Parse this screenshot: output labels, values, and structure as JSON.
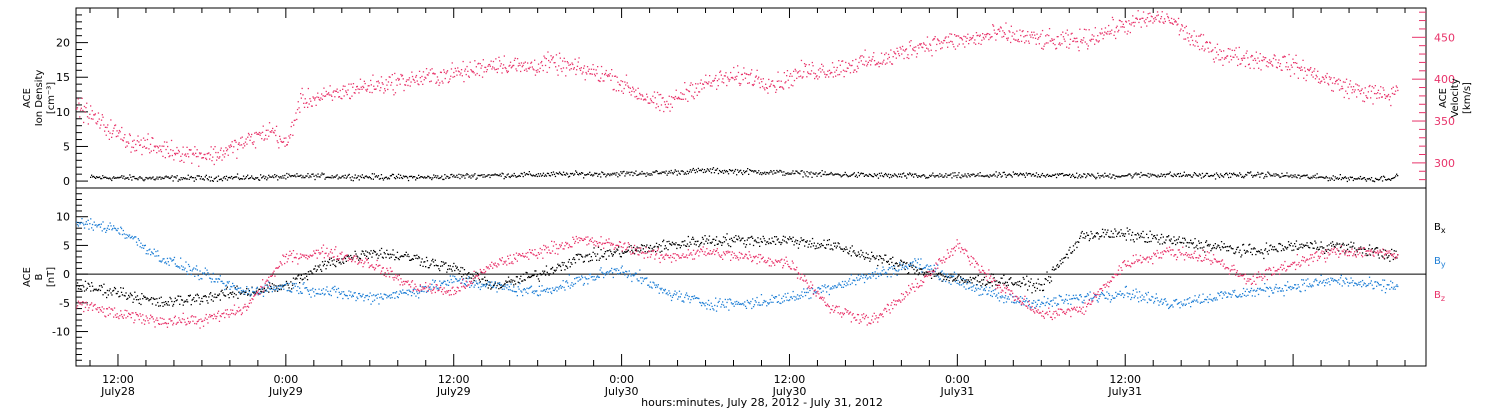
{
  "chart_data": [
    {
      "type": "scatter",
      "panel": "top",
      "y_left_label_lines": [
        "ACE",
        "Ion Density",
        "[cm⁻³]"
      ],
      "y_right_label_lines": [
        "ACE",
        "Velocity",
        "[km/s]"
      ],
      "y_left_ticks": [
        0,
        5,
        10,
        15,
        20
      ],
      "y_left_range": [
        -1,
        25
      ],
      "y_right_ticks": [
        300,
        350,
        400,
        450
      ],
      "y_right_range": [
        270,
        485
      ],
      "x_range_hours": [
        -15,
        81.5
      ],
      "series": [
        {
          "axis": "left",
          "color": "#000000",
          "noise": 0.35,
          "x": [
            -14,
            -10,
            -6,
            -2,
            2,
            6,
            10,
            14,
            18,
            22,
            26,
            30,
            34,
            38,
            42,
            46,
            50,
            54,
            58,
            62,
            66,
            70,
            74,
            78,
            79.5
          ],
          "y": [
            0.6,
            0.5,
            0.5,
            0.6,
            0.8,
            0.7,
            0.6,
            0.9,
            1.0,
            1.1,
            1.2,
            1.6,
            1.4,
            1.1,
            0.9,
            0.8,
            0.9,
            1.0,
            0.8,
            1.0,
            0.9,
            1.0,
            0.6,
            0.4,
            0.7
          ]
        },
        {
          "axis": "right",
          "color": "#e8336a",
          "noise": 10,
          "x": [
            -15,
            -13,
            -11,
            -9,
            -7,
            -5,
            -3,
            -1,
            0,
            1,
            3,
            5,
            7,
            9,
            11,
            13,
            15,
            17,
            19,
            21,
            23,
            25,
            27,
            29,
            31,
            33,
            35,
            37,
            39,
            41,
            43,
            45,
            47,
            49,
            51,
            53,
            55,
            57,
            59,
            61,
            63,
            65,
            67,
            69,
            71,
            73,
            75,
            77,
            79,
            79.5
          ],
          "y": [
            370,
            345,
            325,
            318,
            312,
            310,
            325,
            340,
            320,
            375,
            380,
            390,
            395,
            400,
            405,
            410,
            420,
            415,
            420,
            412,
            405,
            385,
            368,
            390,
            400,
            405,
            395,
            410,
            412,
            420,
            425,
            440,
            445,
            448,
            455,
            450,
            445,
            448,
            460,
            470,
            475,
            445,
            430,
            425,
            422,
            410,
            395,
            385,
            380,
            395
          ]
        }
      ]
    },
    {
      "type": "scatter",
      "panel": "bottom",
      "y_label_lines": [
        "ACE",
        "B",
        "[nT]"
      ],
      "y_ticks": [
        -10,
        -5,
        0,
        5,
        10
      ],
      "y_range": [
        -16,
        15
      ],
      "x_range_hours": [
        -15,
        81.5
      ],
      "zero_line": true,
      "series": [
        {
          "name": "Bx",
          "color": "#000000",
          "noise": 0.9,
          "x": [
            -15,
            -12,
            -9,
            -6,
            -3,
            0,
            3,
            6,
            9,
            12,
            15,
            18,
            21,
            24,
            27,
            30,
            33,
            36,
            39,
            42,
            45,
            48,
            51,
            54,
            57,
            60,
            63,
            66,
            69,
            72,
            75,
            78,
            79.5
          ],
          "y": [
            -2,
            -3,
            -5,
            -4,
            -3,
            -2,
            2,
            4,
            3,
            1,
            -2,
            0,
            3,
            4,
            5,
            6,
            6,
            6,
            5,
            3,
            1,
            -1,
            -1,
            -2,
            7,
            7,
            6,
            5,
            4,
            5,
            5,
            4,
            3
          ]
        },
        {
          "name": "By",
          "color": "#1f7fd6",
          "noise": 0.9,
          "x": [
            -15,
            -12,
            -9,
            -6,
            -3,
            0,
            3,
            6,
            9,
            12,
            15,
            18,
            21,
            24,
            27,
            30,
            33,
            36,
            39,
            42,
            45,
            48,
            51,
            54,
            57,
            60,
            63,
            66,
            69,
            72,
            75,
            78,
            79.5
          ],
          "y": [
            9,
            8,
            3,
            0,
            -3,
            -2,
            -3,
            -4,
            -3,
            -1,
            -2,
            -3,
            -1,
            1,
            -3,
            -5,
            -5,
            -4,
            -2,
            0,
            2,
            -1,
            -4,
            -5,
            -4,
            -3,
            -5,
            -4,
            -3,
            -2,
            -1,
            -2,
            -2
          ]
        },
        {
          "name": "Bz",
          "color": "#e8336a",
          "noise": 0.9,
          "x": [
            -15,
            -12,
            -9,
            -6,
            -3,
            0,
            3,
            6,
            9,
            12,
            15,
            18,
            21,
            24,
            27,
            30,
            33,
            36,
            39,
            42,
            45,
            48,
            51,
            54,
            57,
            60,
            63,
            66,
            69,
            72,
            75,
            78,
            79.5
          ],
          "y": [
            -5,
            -7,
            -8,
            -8,
            -6,
            3,
            4,
            2,
            -2,
            -3,
            2,
            4,
            6,
            5,
            3,
            4,
            3,
            2,
            -6,
            -8,
            -2,
            5,
            -2,
            -7,
            -6,
            2,
            4,
            3,
            -1,
            2,
            4,
            4,
            3
          ]
        }
      ],
      "legend": [
        {
          "label": "B",
          "sub": "x",
          "color": "#000000"
        },
        {
          "label": "B",
          "sub": "y",
          "color": "#1f7fd6"
        },
        {
          "label": "B",
          "sub": "z",
          "color": "#e8336a"
        }
      ]
    }
  ],
  "x_axis": {
    "title": "hours:minutes, July 28, 2012 - July 31, 2012",
    "ticks": [
      {
        "hour": -12,
        "time": "12:00",
        "date": "July28"
      },
      {
        "hour": 0,
        "time": "0:00",
        "date": "July29"
      },
      {
        "hour": 12,
        "time": "12:00",
        "date": "July29"
      },
      {
        "hour": 24,
        "time": "0:00",
        "date": "July30"
      },
      {
        "hour": 36,
        "time": "12:00",
        "date": "July30"
      },
      {
        "hour": 48,
        "time": "0:00",
        "date": "July31"
      },
      {
        "hour": 60,
        "time": "12:00",
        "date": "July31"
      }
    ]
  }
}
